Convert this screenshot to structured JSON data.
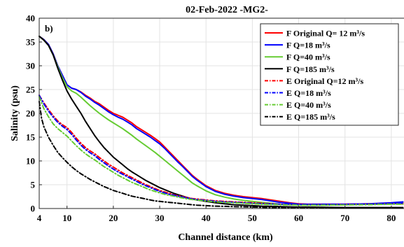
{
  "chart_data": {
    "type": "line",
    "title": "02-Feb-2022 -MG2-",
    "panel_label": "b)",
    "xlabel": "Channel distance (km)",
    "ylabel": "Salinity (psu)",
    "xlim": [
      4,
      85
    ],
    "ylim": [
      0,
      40
    ],
    "xticks": [
      4,
      10,
      20,
      30,
      40,
      50,
      60,
      70,
      80
    ],
    "yticks": [
      0,
      5,
      10,
      15,
      20,
      25,
      30,
      35,
      40
    ],
    "grid": true,
    "legend_position": "top-right",
    "series": [
      {
        "name": "F Original Q= 12 m³/s",
        "color": "#ff0000",
        "style": "solid",
        "x": [
          4,
          5,
          6,
          7,
          8,
          9,
          10,
          11,
          12,
          13,
          14,
          15,
          16,
          17,
          18,
          19,
          20,
          21,
          22,
          23,
          24,
          25,
          26,
          27,
          28,
          29,
          30,
          31,
          32,
          33,
          34,
          35,
          36,
          37,
          38,
          40,
          42,
          44,
          46,
          48,
          50,
          52,
          54,
          56,
          58,
          60,
          62,
          65,
          70,
          75,
          80,
          82.5
        ],
        "y": [
          36.2,
          35.5,
          34.5,
          32.5,
          30.0,
          28.0,
          26.0,
          25.3,
          25.0,
          24.5,
          23.8,
          23.2,
          22.5,
          22.0,
          21.3,
          20.6,
          20.0,
          19.6,
          19.2,
          18.6,
          18.0,
          17.2,
          16.6,
          16.0,
          15.4,
          14.7,
          14.0,
          13.0,
          12.0,
          11.0,
          10.0,
          9.0,
          8.0,
          7.0,
          6.2,
          4.8,
          3.8,
          3.2,
          2.8,
          2.5,
          2.3,
          2.1,
          1.8,
          1.5,
          1.2,
          1.0,
          0.9,
          0.9,
          0.9,
          1.0,
          1.1,
          1.2
        ]
      },
      {
        "name": "F Q=18 m³/s",
        "color": "#0000ff",
        "style": "solid",
        "x": [
          4,
          5,
          6,
          7,
          8,
          9,
          10,
          11,
          12,
          13,
          14,
          15,
          16,
          17,
          18,
          19,
          20,
          21,
          22,
          23,
          24,
          25,
          26,
          27,
          28,
          29,
          30,
          31,
          32,
          33,
          34,
          35,
          36,
          37,
          38,
          40,
          42,
          44,
          46,
          48,
          50,
          52,
          54,
          56,
          58,
          60,
          62,
          65,
          70,
          75,
          80,
          82.5
        ],
        "y": [
          36.2,
          35.5,
          34.5,
          32.5,
          30.0,
          28.0,
          26.0,
          25.3,
          25.0,
          24.4,
          23.6,
          23.0,
          22.3,
          21.7,
          21.0,
          20.3,
          19.7,
          19.2,
          18.8,
          18.2,
          17.6,
          16.8,
          16.2,
          15.6,
          15.0,
          14.3,
          13.6,
          12.7,
          11.7,
          10.7,
          9.7,
          8.8,
          7.8,
          6.8,
          6.0,
          4.6,
          3.6,
          3.0,
          2.6,
          2.3,
          2.1,
          1.9,
          1.6,
          1.3,
          1.1,
          0.9,
          0.9,
          0.9,
          0.9,
          1.0,
          1.2,
          1.4
        ]
      },
      {
        "name": "F Q=40 m³/s",
        "color": "#66cc33",
        "style": "solid",
        "x": [
          4,
          5,
          6,
          7,
          8,
          9,
          10,
          11,
          12,
          13,
          14,
          15,
          16,
          17,
          18,
          19,
          20,
          21,
          22,
          23,
          24,
          25,
          26,
          27,
          28,
          29,
          30,
          31,
          32,
          33,
          34,
          35,
          36,
          37,
          38,
          40,
          42,
          44,
          46,
          48,
          50,
          52,
          54,
          56,
          58,
          60,
          62,
          65,
          70,
          75,
          80,
          82.5
        ],
        "y": [
          36.2,
          35.4,
          34.3,
          32.3,
          29.8,
          27.5,
          25.6,
          24.7,
          24.2,
          23.4,
          22.5,
          21.6,
          20.8,
          20.0,
          19.3,
          18.6,
          18.0,
          17.4,
          16.8,
          16.1,
          15.4,
          14.6,
          13.9,
          13.2,
          12.5,
          11.8,
          11.0,
          10.2,
          9.4,
          8.6,
          7.8,
          7.0,
          6.2,
          5.4,
          4.8,
          3.7,
          2.9,
          2.4,
          2.0,
          1.7,
          1.5,
          1.3,
          1.1,
          0.9,
          0.8,
          0.7,
          0.7,
          0.7,
          0.8,
          0.9,
          1.0,
          1.1
        ]
      },
      {
        "name": "F Q=185 m³/s",
        "color": "#000000",
        "style": "solid",
        "x": [
          4,
          5,
          6,
          7,
          8,
          9,
          10,
          11,
          12,
          13,
          14,
          15,
          16,
          17,
          18,
          19,
          20,
          21,
          22,
          23,
          24,
          25,
          26,
          27,
          28,
          29,
          30,
          31,
          32,
          33,
          34,
          35,
          36,
          37,
          38,
          40,
          42,
          44,
          46,
          48,
          50,
          52,
          54,
          56,
          58,
          60,
          62,
          65,
          70,
          75,
          80,
          82.5
        ],
        "y": [
          36.2,
          35.4,
          34.3,
          32.3,
          29.5,
          27.0,
          24.7,
          23.0,
          21.5,
          20.0,
          18.3,
          16.8,
          15.3,
          14.0,
          12.8,
          11.8,
          10.8,
          10.0,
          9.2,
          8.4,
          7.7,
          7.1,
          6.5,
          5.9,
          5.4,
          4.9,
          4.4,
          4.0,
          3.6,
          3.2,
          2.9,
          2.6,
          2.3,
          2.0,
          1.8,
          1.5,
          1.2,
          1.0,
          0.8,
          0.7,
          0.6,
          0.5,
          0.45,
          0.4,
          0.35,
          0.3,
          0.3,
          0.25,
          0.2,
          0.2,
          0.2,
          0.2
        ]
      },
      {
        "name": "E Original Q=12 m³/s",
        "color": "#ff0000",
        "style": "dashdot",
        "x": [
          4,
          5,
          6,
          7,
          8,
          9,
          10,
          11,
          12,
          13,
          14,
          15,
          16,
          17,
          18,
          19,
          20,
          21,
          22,
          23,
          24,
          25,
          26,
          27,
          28,
          29,
          30,
          31,
          32,
          33,
          34,
          35,
          36,
          37,
          38,
          40,
          42,
          44,
          46,
          48,
          50,
          52,
          54,
          56,
          58,
          60,
          62,
          65,
          70,
          75,
          80,
          82.5
        ],
        "y": [
          23.8,
          22.2,
          20.8,
          19.5,
          18.4,
          17.6,
          17.0,
          16.0,
          14.8,
          13.7,
          12.8,
          12.1,
          11.5,
          10.7,
          10.0,
          9.3,
          8.7,
          8.1,
          7.5,
          7.0,
          6.5,
          6.0,
          5.5,
          5.0,
          4.6,
          4.2,
          3.8,
          3.5,
          3.2,
          2.9,
          2.7,
          2.5,
          2.3,
          2.1,
          2.0,
          1.8,
          1.6,
          1.5,
          1.4,
          1.3,
          1.2,
          1.1,
          1.0,
          0.9,
          0.85,
          0.8,
          0.8,
          0.8,
          0.85,
          0.9,
          1.0,
          1.0
        ]
      },
      {
        "name": "E Q=18 m³/s",
        "color": "#0000ff",
        "style": "dashdot",
        "x": [
          4,
          5,
          6,
          7,
          8,
          9,
          10,
          11,
          12,
          13,
          14,
          15,
          16,
          17,
          18,
          19,
          20,
          21,
          22,
          23,
          24,
          25,
          26,
          27,
          28,
          29,
          30,
          31,
          32,
          33,
          34,
          35,
          36,
          37,
          38,
          40,
          42,
          44,
          46,
          48,
          50,
          52,
          54,
          56,
          58,
          60,
          62,
          65,
          70,
          75,
          80,
          82.5
        ],
        "y": [
          23.8,
          22.0,
          20.5,
          19.2,
          18.1,
          17.3,
          16.6,
          15.6,
          14.4,
          13.3,
          12.4,
          11.7,
          11.1,
          10.3,
          9.6,
          8.9,
          8.3,
          7.7,
          7.2,
          6.7,
          6.2,
          5.7,
          5.2,
          4.8,
          4.4,
          4.0,
          3.6,
          3.3,
          3.0,
          2.8,
          2.6,
          2.4,
          2.2,
          2.0,
          1.9,
          1.7,
          1.5,
          1.4,
          1.3,
          1.2,
          1.1,
          1.0,
          0.95,
          0.9,
          0.85,
          0.8,
          0.8,
          0.8,
          0.85,
          0.9,
          1.0,
          1.1
        ]
      },
      {
        "name": "E Q=40 m³/s",
        "color": "#66cc33",
        "style": "dashdot",
        "x": [
          4,
          5,
          6,
          7,
          8,
          9,
          10,
          11,
          12,
          13,
          14,
          15,
          16,
          17,
          18,
          19,
          20,
          21,
          22,
          23,
          24,
          25,
          26,
          27,
          28,
          29,
          30,
          31,
          32,
          33,
          34,
          35,
          36,
          37,
          38,
          40,
          42,
          44,
          46,
          48,
          50,
          52,
          54,
          56,
          58,
          60,
          62,
          65,
          70,
          75,
          80,
          82.5
        ],
        "y": [
          23.5,
          21.0,
          19.3,
          17.8,
          16.8,
          16.0,
          15.2,
          14.2,
          13.2,
          12.3,
          11.5,
          10.8,
          10.2,
          9.5,
          8.8,
          8.2,
          7.6,
          7.0,
          6.5,
          6.0,
          5.5,
          5.1,
          4.7,
          4.3,
          3.9,
          3.6,
          3.3,
          3.0,
          2.8,
          2.6,
          2.4,
          2.2,
          2.0,
          1.9,
          1.8,
          1.6,
          1.4,
          1.3,
          1.2,
          1.1,
          1.0,
          0.9,
          0.85,
          0.8,
          0.75,
          0.7,
          0.7,
          0.7,
          0.75,
          0.8,
          0.9,
          0.9
        ]
      },
      {
        "name": "E Q=185 m³/s",
        "color": "#000000",
        "style": "dashdot",
        "x": [
          4,
          4.5,
          5,
          6,
          7,
          8,
          9,
          10,
          11,
          12,
          13,
          14,
          15,
          16,
          17,
          18,
          19,
          20,
          21,
          22,
          23,
          24,
          25,
          26,
          27,
          28,
          29,
          30,
          31,
          32,
          33,
          34,
          35,
          36,
          37,
          38,
          40,
          42,
          44,
          46,
          48,
          50,
          52,
          54,
          56,
          58,
          60,
          62,
          65,
          70,
          75,
          80,
          82.5
        ],
        "y": [
          22.5,
          19.0,
          17.2,
          15.0,
          13.3,
          11.8,
          10.7,
          9.7,
          8.8,
          8.0,
          7.3,
          6.7,
          6.1,
          5.6,
          5.1,
          4.6,
          4.2,
          3.8,
          3.5,
          3.2,
          2.9,
          2.6,
          2.4,
          2.2,
          2.0,
          1.8,
          1.6,
          1.5,
          1.4,
          1.3,
          1.2,
          1.1,
          1.0,
          0.9,
          0.8,
          0.7,
          0.6,
          0.5,
          0.45,
          0.4,
          0.35,
          0.3,
          0.25,
          0.2,
          0.2,
          0.15,
          0.15,
          0.1,
          0.1,
          0.1,
          0.1,
          0.1,
          0.1
        ]
      }
    ]
  }
}
